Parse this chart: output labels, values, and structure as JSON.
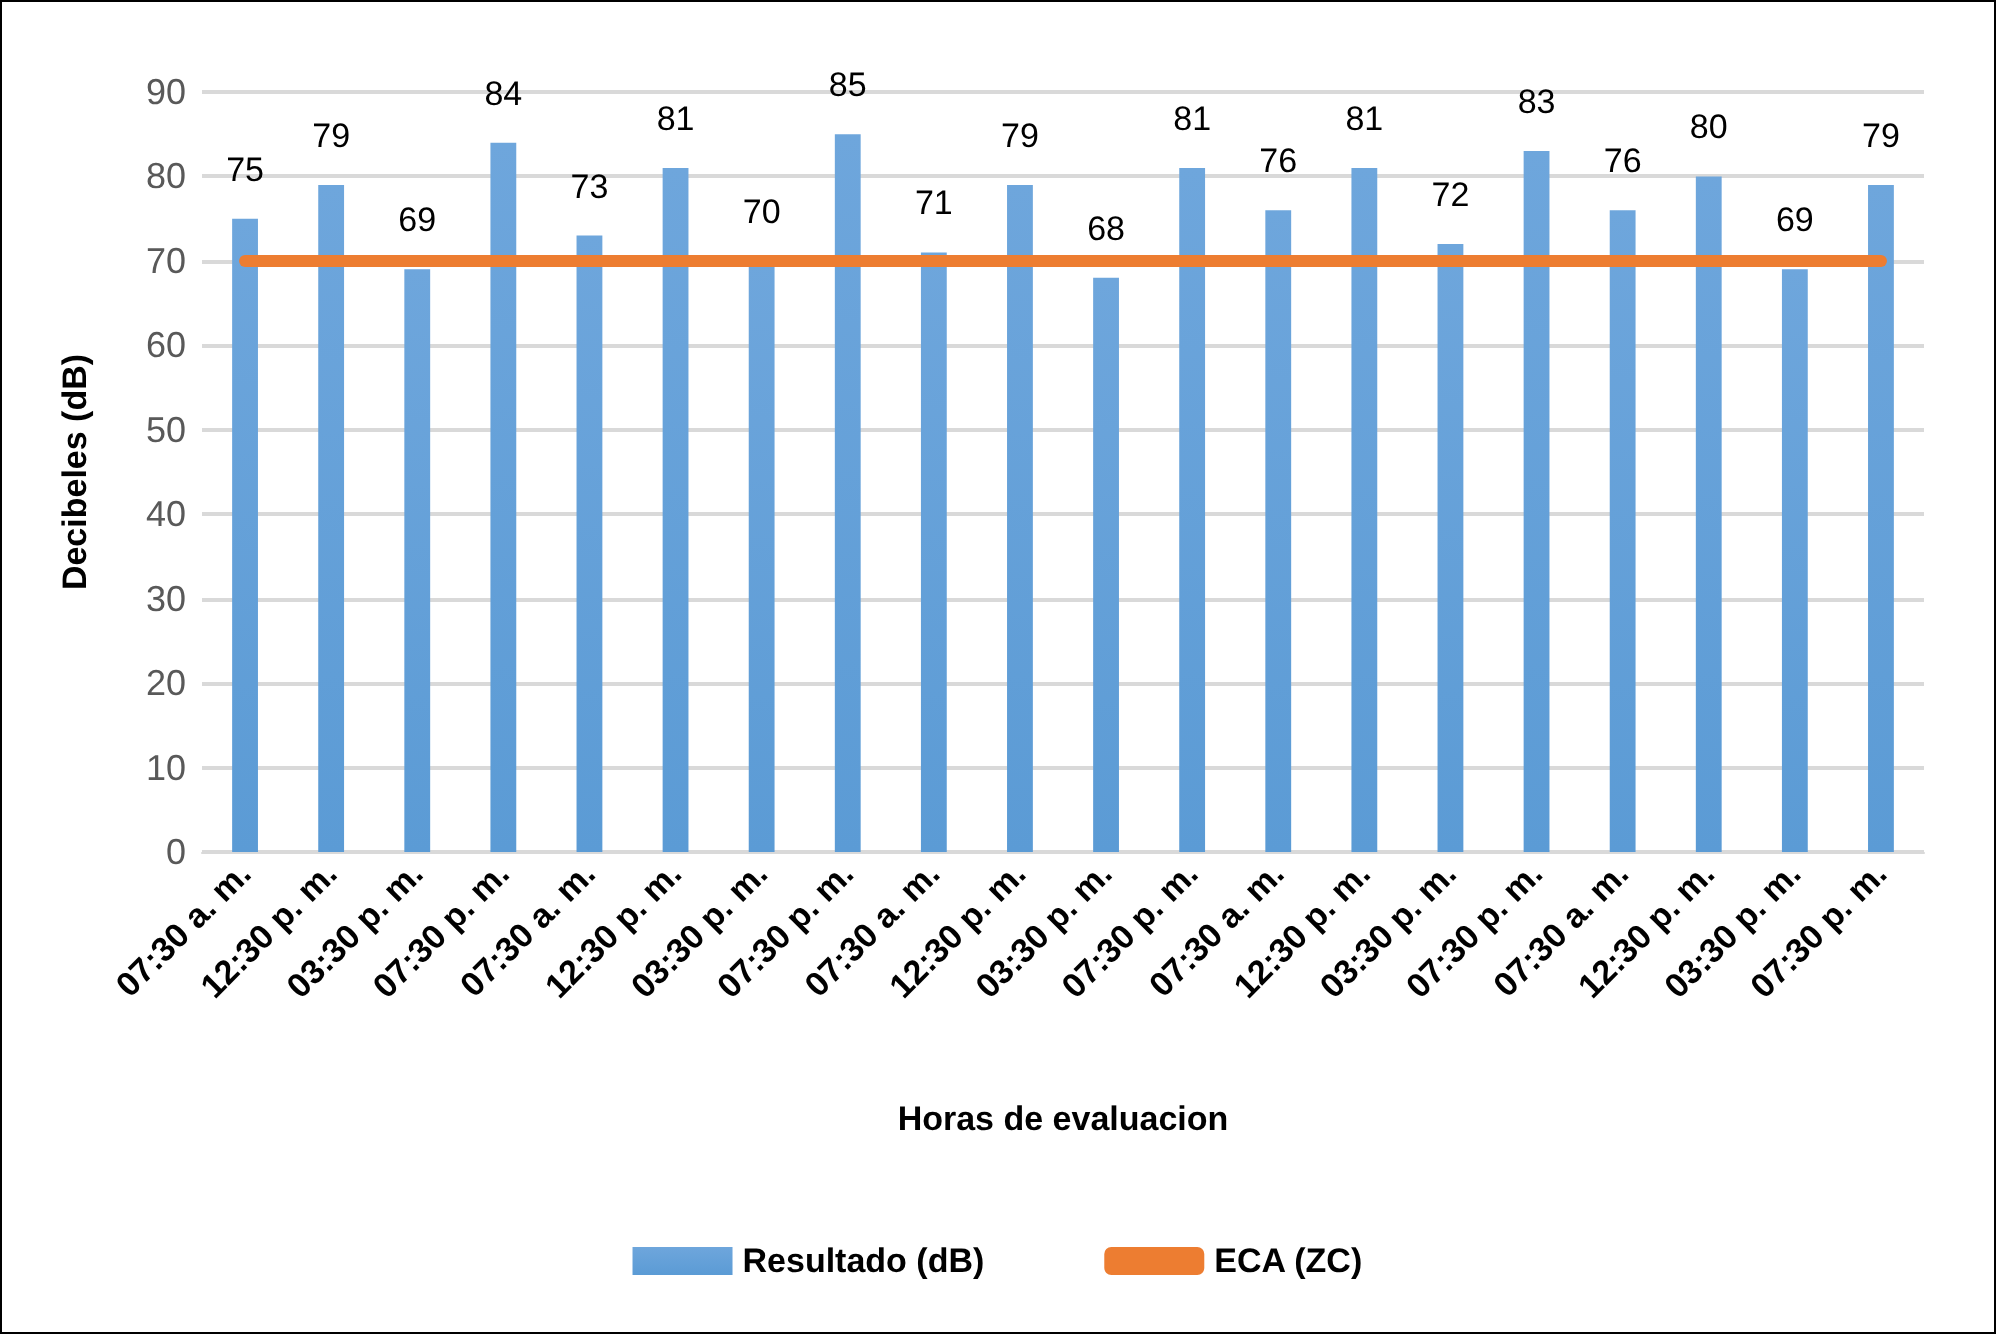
{
  "chart_data": {
    "type": "bar",
    "xlabel": "Horas de evaluacion",
    "ylabel": "Decibeles (dB)",
    "categories": [
      "07:30 a. m.",
      "12:30 p. m.",
      "03:30 p. m.",
      "07:30 p. m.",
      "07:30 a. m.",
      "12:30 p. m.",
      "03:30 p. m.",
      "07:30 p. m.",
      "07:30 a. m.",
      "12:30 p. m.",
      "03:30 p. m.",
      "07:30 p. m.",
      "07:30 a. m.",
      "12:30 p. m.",
      "03:30 p. m.",
      "07:30 p. m.",
      "07:30 a. m.",
      "12:30 p. m.",
      "03:30 p. m.",
      "07:30 p. m."
    ],
    "series": [
      {
        "name": "Resultado (dB)",
        "color": "#5b9bd5",
        "values": [
          75,
          79,
          69,
          84,
          73,
          81,
          70,
          85,
          71,
          79,
          68,
          81,
          76,
          81,
          72,
          83,
          76,
          80,
          69,
          79
        ],
        "value_labels": [
          "75",
          "79",
          "69",
          "84",
          "73",
          "81",
          "70",
          "85",
          "71",
          "79",
          "68",
          "81",
          "76",
          "81",
          "72",
          "83",
          "76",
          "80",
          "69",
          "79"
        ]
      },
      {
        "name": "ECA (ZC)",
        "type": "line",
        "color": "#ed7d31",
        "values": [
          70,
          70,
          70,
          70,
          70,
          70,
          70,
          70,
          70,
          70,
          70,
          70,
          70,
          70,
          70,
          70,
          70,
          70,
          70,
          70
        ]
      }
    ],
    "ylim": [
      0,
      90
    ],
    "yticks": [
      0,
      10,
      20,
      30,
      40,
      50,
      60,
      70,
      80,
      90
    ],
    "grid": "y",
    "legend": "bottom",
    "marker": "none"
  }
}
